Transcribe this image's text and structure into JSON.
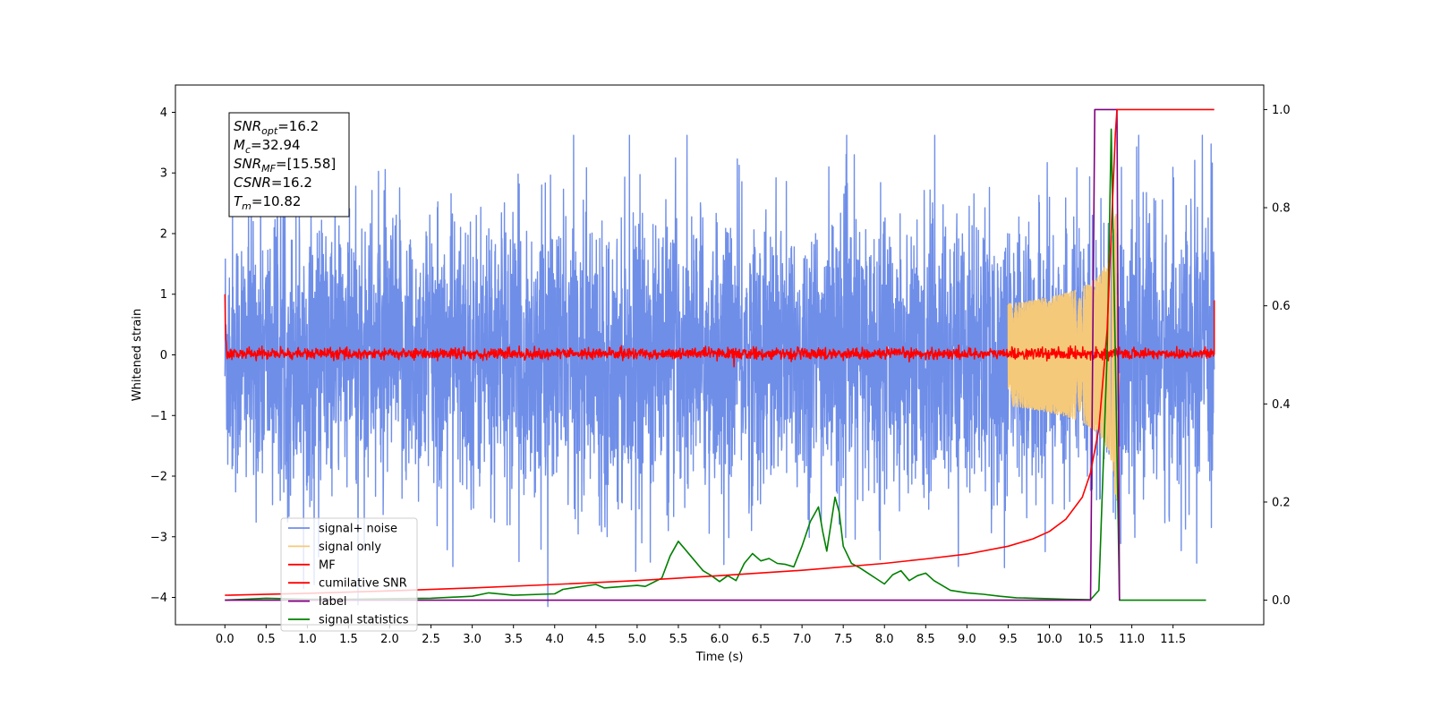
{
  "chart_data": {
    "type": "line",
    "xlabel": "Time (s)",
    "ylabel": "Whitened strain",
    "xlim": [
      -0.6,
      12.6
    ],
    "ylim": [
      -4.45,
      4.45
    ],
    "y2lim": [
      -0.05,
      1.05
    ],
    "x_ticks": [
      0.0,
      0.5,
      1.0,
      1.5,
      2.0,
      2.5,
      3.0,
      3.5,
      4.0,
      4.5,
      5.0,
      5.5,
      6.0,
      6.5,
      7.0,
      7.5,
      8.0,
      8.5,
      9.0,
      9.5,
      10.0,
      10.5,
      11.0,
      11.5
    ],
    "x_tick_labels": [
      "0.0",
      "0.5",
      "1.0",
      "1.5",
      "2.0",
      "2.5",
      "3.0",
      "3.5",
      "4.0",
      "4.5",
      "5.0",
      "5.5",
      "6.0",
      "6.5",
      "7.0",
      "7.5",
      "8.0",
      "8.5",
      "9.0",
      "9.5",
      "10.0",
      "10.5",
      "11.0",
      "11.5"
    ],
    "y_ticks": [
      -4,
      -3,
      -2,
      -1,
      0,
      1,
      2,
      3,
      4
    ],
    "y_tick_labels": [
      "−4",
      "−3",
      "−2",
      "−1",
      "0",
      "1",
      "2",
      "3",
      "4"
    ],
    "y2_ticks": [
      0.0,
      0.2,
      0.4,
      0.6,
      0.8,
      1.0
    ],
    "y2_tick_labels": [
      "0.0",
      "0.2",
      "0.4",
      "0.6",
      "0.8",
      "1.0"
    ],
    "legend_position": "lower-left",
    "annotation_box": {
      "position": "upper-left",
      "lines": [
        {
          "base": "SNR",
          "sub": "opt",
          "value": "=16.2"
        },
        {
          "base": "M",
          "sub": "c",
          "value": "=32.94"
        },
        {
          "base": "SNR",
          "sub": "MF",
          "value": "=[15.58]"
        },
        {
          "base": "CSNR",
          "sub": "",
          "value": "=16.2"
        },
        {
          "base": "T",
          "sub": "m",
          "value": "=10.82"
        }
      ]
    },
    "series": [
      {
        "name": "signal+ noise",
        "color": "#6f8ee8",
        "axis": "left",
        "kind": "noise",
        "x_range": [
          0.0,
          12.0
        ],
        "typical_amplitude": 2.5,
        "min": -4.15,
        "max": 3.62
      },
      {
        "name": "signal only",
        "color": "#f5c97a",
        "axis": "left",
        "kind": "chirp",
        "x_range": [
          9.5,
          10.85
        ],
        "peak_amplitude": 2.4,
        "merger_time": 10.82
      },
      {
        "name": "MF",
        "color": "#ff0000",
        "axis": "left",
        "kind": "mf_noise",
        "x_range": [
          0.0,
          12.0
        ],
        "baseline": 0.02,
        "start_value": 1.0,
        "end_value": 0.9
      },
      {
        "name": "cumilative SNR",
        "color": "#ff0000",
        "axis": "right",
        "x": [
          0.0,
          1.0,
          2.0,
          3.0,
          4.0,
          5.0,
          6.0,
          7.0,
          8.0,
          8.5,
          9.0,
          9.5,
          9.8,
          10.0,
          10.2,
          10.4,
          10.5,
          10.6,
          10.7,
          10.75,
          10.8,
          10.82,
          10.85,
          12.0
        ],
        "values": [
          0.01,
          0.014,
          0.019,
          0.025,
          0.032,
          0.04,
          0.05,
          0.061,
          0.075,
          0.084,
          0.094,
          0.11,
          0.125,
          0.14,
          0.165,
          0.21,
          0.26,
          0.35,
          0.55,
          0.75,
          0.95,
          1.0,
          1.0,
          1.0
        ]
      },
      {
        "name": "label",
        "color": "#800080",
        "axis": "right",
        "x": [
          0.0,
          10.5,
          10.55,
          10.82,
          10.85
        ],
        "values": [
          0.0,
          0.0,
          1.0,
          1.0,
          0.0
        ]
      },
      {
        "name": "signal statistics",
        "color": "#008000",
        "axis": "right",
        "x": [
          0.0,
          0.5,
          1.0,
          1.5,
          2.0,
          2.5,
          3.0,
          3.2,
          3.5,
          4.0,
          4.1,
          4.5,
          4.6,
          5.0,
          5.1,
          5.3,
          5.4,
          5.5,
          5.6,
          5.8,
          5.9,
          6.0,
          6.1,
          6.2,
          6.3,
          6.4,
          6.5,
          6.6,
          6.7,
          6.8,
          6.9,
          7.0,
          7.1,
          7.2,
          7.25,
          7.3,
          7.4,
          7.45,
          7.5,
          7.6,
          7.7,
          7.8,
          7.9,
          8.0,
          8.1,
          8.2,
          8.3,
          8.4,
          8.5,
          8.6,
          8.8,
          9.0,
          9.2,
          9.4,
          9.6,
          9.8,
          10.0,
          10.2,
          10.5,
          10.6,
          10.7,
          10.75,
          10.8,
          10.85,
          11.0,
          11.9
        ],
        "values": [
          0.0,
          0.004,
          0.002,
          0.002,
          0.003,
          0.004,
          0.008,
          0.015,
          0.01,
          0.013,
          0.022,
          0.032,
          0.025,
          0.03,
          0.028,
          0.045,
          0.09,
          0.12,
          0.1,
          0.06,
          0.05,
          0.038,
          0.05,
          0.04,
          0.075,
          0.095,
          0.08,
          0.085,
          0.075,
          0.073,
          0.068,
          0.11,
          0.16,
          0.19,
          0.14,
          0.1,
          0.21,
          0.18,
          0.11,
          0.075,
          0.066,
          0.055,
          0.044,
          0.033,
          0.052,
          0.06,
          0.04,
          0.05,
          0.055,
          0.04,
          0.02,
          0.015,
          0.012,
          0.008,
          0.005,
          0.004,
          0.003,
          0.002,
          0.001,
          0.02,
          0.5,
          0.96,
          0.5,
          0.0,
          0.0,
          0.0
        ]
      }
    ]
  }
}
